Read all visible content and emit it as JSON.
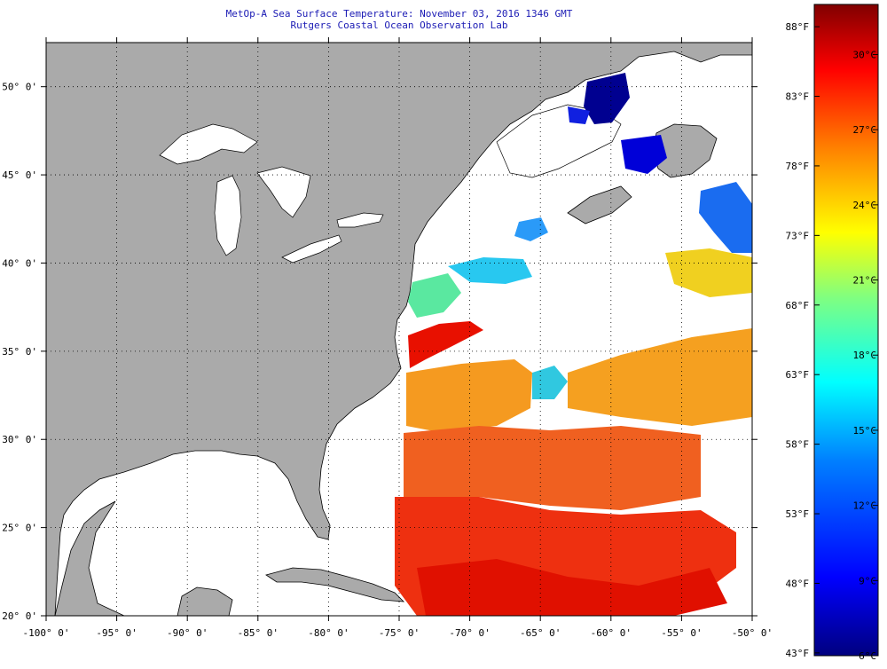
{
  "title": {
    "line1": "MetOp-A Sea Surface Temperature:  November 03, 2016 1346 GMT",
    "line2": "Rutgers Coastal Ocean Observation Lab"
  },
  "map": {
    "lon_range": [
      -100,
      -50
    ],
    "lat_range": [
      20,
      52.5
    ],
    "lon_ticks": [
      {
        "value": -100,
        "label": "-100° 0'"
      },
      {
        "value": -95,
        "label": "-95° 0'"
      },
      {
        "value": -90,
        "label": "-90° 0'"
      },
      {
        "value": -85,
        "label": "-85° 0'"
      },
      {
        "value": -80,
        "label": "-80° 0'"
      },
      {
        "value": -75,
        "label": "-75° 0'"
      },
      {
        "value": -70,
        "label": "-70° 0'"
      },
      {
        "value": -65,
        "label": "-65° 0'"
      },
      {
        "value": -60,
        "label": "-60° 0'"
      },
      {
        "value": -55,
        "label": "-55° 0'"
      },
      {
        "value": -50,
        "label": "-50° 0'"
      }
    ],
    "lat_ticks": [
      {
        "value": 20,
        "label": "20° 0'"
      },
      {
        "value": 25,
        "label": "25° 0'"
      },
      {
        "value": 30,
        "label": "30° 0'"
      },
      {
        "value": 35,
        "label": "35° 0'"
      },
      {
        "value": 40,
        "label": "40° 0'"
      },
      {
        "value": 45,
        "label": "45° 0'"
      },
      {
        "value": 50,
        "label": "50° 0'"
      }
    ],
    "colors": {
      "land": "#aaaaaa",
      "no_data": "#ffffff",
      "grid": "#000000"
    },
    "grid": "dotted"
  },
  "colorbar": {
    "range_c": [
      6,
      32
    ],
    "celsius_labels": [
      "30°C",
      "27°C",
      "24°C",
      "21°C",
      "18°C",
      "15°C",
      "12°C",
      "9°C",
      "6°C"
    ],
    "fahrenheit_labels": [
      "88°F",
      "83°F",
      "78°F",
      "73°F",
      "68°F",
      "63°F",
      "58°F",
      "53°F",
      "48°F",
      "43°F"
    ],
    "stops": [
      "#00007f",
      "#0000ff",
      "#0080ff",
      "#00ffff",
      "#80ff80",
      "#ffff00",
      "#ff8000",
      "#ff0000",
      "#800000"
    ]
  }
}
